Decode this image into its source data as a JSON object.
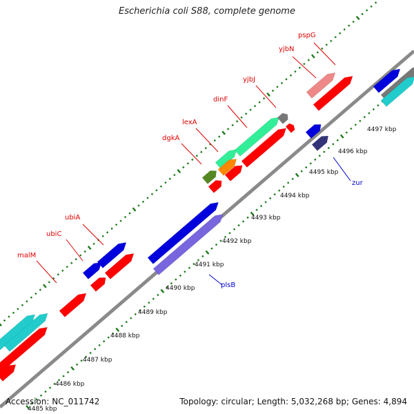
{
  "title": "Escherichia coli S88, complete genome",
  "footer": {
    "accession": "Accession: NC_011742",
    "summary": "Topology: circular; Length: 5,032,268 bp; Genes: 4,894"
  },
  "axis": {
    "unit": "kbp",
    "ticks": [
      "4485 kbp",
      "4486 kbp",
      "4487 kbp",
      "4488 kbp",
      "4489 kbp",
      "4490 kbp",
      "4491 kbp",
      "4492 kbp",
      "4493 kbp",
      "4494 kbp",
      "4495 kbp",
      "4496 kbp",
      "4497 kbp"
    ]
  },
  "gene_labels": [
    {
      "name": "malM",
      "strand": "top",
      "color": "#dd0000"
    },
    {
      "name": "ubiC",
      "strand": "top",
      "color": "#dd0000"
    },
    {
      "name": "ubiA",
      "strand": "top",
      "color": "#dd0000"
    },
    {
      "name": "dgkA",
      "strand": "top",
      "color": "#dd0000"
    },
    {
      "name": "lexA",
      "strand": "top",
      "color": "#dd0000"
    },
    {
      "name": "dinF",
      "strand": "top",
      "color": "#dd0000"
    },
    {
      "name": "yjbJ",
      "strand": "top",
      "color": "#dd0000"
    },
    {
      "name": "yjbN",
      "strand": "top",
      "color": "#dd0000"
    },
    {
      "name": "pspG",
      "strand": "top",
      "color": "#dd0000"
    },
    {
      "name": "plsB",
      "strand": "bottom",
      "color": "#0000cc"
    },
    {
      "name": "zur",
      "strand": "bottom",
      "color": "#0000cc"
    }
  ],
  "colors": {
    "backbone": "#8a8a8a",
    "dots": "#1a7a1a",
    "red": "#ff0000",
    "blue": "#0000dd",
    "cyan": "#22cccc",
    "green": "#33ee99",
    "purple": "#7766dd",
    "olive": "#558822",
    "orange": "#ff8800",
    "pink": "#ee8888",
    "navy": "#333377",
    "gray": "#777777"
  }
}
